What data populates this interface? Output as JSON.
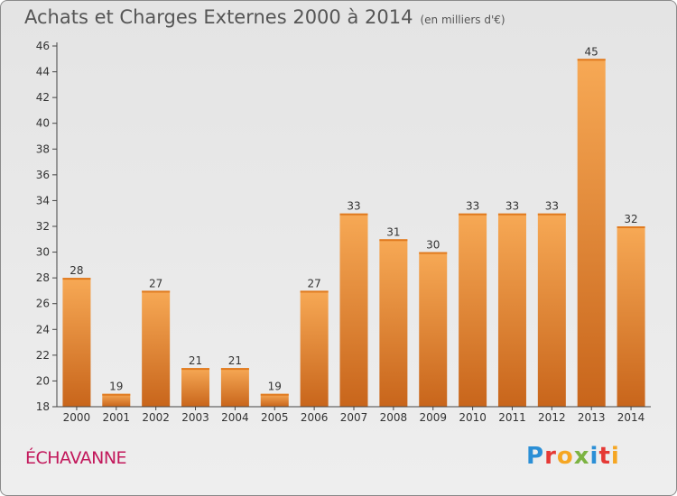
{
  "title": "Achats et Charges Externes 2000 à 2014",
  "unit_label": "(en milliers d'€)",
  "commune": "ÉCHAVANNE",
  "logo": {
    "letters": [
      {
        "ch": "P",
        "color": "#2b8fd6"
      },
      {
        "ch": "r",
        "color": "#e53935"
      },
      {
        "ch": "o",
        "color": "#f5a623"
      },
      {
        "ch": "x",
        "color": "#7cb342"
      },
      {
        "ch": "i",
        "color": "#2b8fd6"
      },
      {
        "ch": "t",
        "color": "#e53935"
      },
      {
        "ch": "i",
        "color": "#f5a623"
      }
    ]
  },
  "chart_data": {
    "type": "bar",
    "categories": [
      "2000",
      "2001",
      "2002",
      "2003",
      "2004",
      "2005",
      "2006",
      "2007",
      "2008",
      "2009",
      "2010",
      "2011",
      "2012",
      "2013",
      "2014"
    ],
    "values": [
      28,
      19,
      27,
      21,
      21,
      19,
      27,
      33,
      31,
      30,
      33,
      33,
      33,
      45,
      32
    ],
    "ylim": [
      18,
      46
    ],
    "yticks": [
      18,
      20,
      22,
      24,
      26,
      28,
      30,
      32,
      34,
      36,
      38,
      40,
      42,
      44,
      46
    ],
    "grid": false,
    "legend": "none",
    "bar_color_top": "#f7a955",
    "bar_color_bottom": "#c8651b"
  }
}
